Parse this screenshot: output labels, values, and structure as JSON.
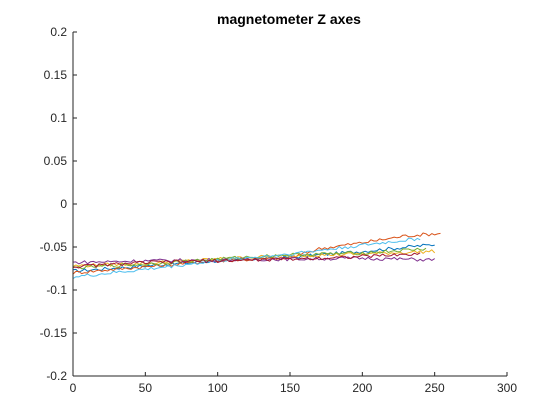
{
  "chart_data": {
    "type": "line",
    "title": "magnetometer Z axes",
    "xlabel": "",
    "ylabel": "",
    "xlim": [
      0,
      300
    ],
    "ylim": [
      -0.2,
      0.2
    ],
    "xticks": [
      0,
      50,
      100,
      150,
      200,
      250,
      300
    ],
    "yticks": [
      -0.2,
      -0.15,
      -0.1,
      -0.05,
      0,
      0.05,
      0.1,
      0.15,
      0.2
    ],
    "xtick_labels": [
      "0",
      "50",
      "100",
      "150",
      "200",
      "250",
      "300"
    ],
    "ytick_labels": [
      "-0.2",
      "-0.15",
      "-0.1",
      "-0.05",
      "0",
      "0.05",
      "0.1",
      "0.15",
      "0.2"
    ],
    "grid": false,
    "legend": "none",
    "series": [
      {
        "color": "#0072BD",
        "x": [
          0,
          50,
          100,
          150,
          200,
          250
        ],
        "y": [
          -0.078,
          -0.072,
          -0.066,
          -0.062,
          -0.055,
          -0.047
        ]
      },
      {
        "color": "#D95319",
        "x": [
          0,
          50,
          100,
          150,
          170,
          200,
          230,
          255
        ],
        "y": [
          -0.08,
          -0.073,
          -0.066,
          -0.063,
          -0.052,
          -0.045,
          -0.037,
          -0.034
        ]
      },
      {
        "color": "#EDB120",
        "x": [
          0,
          50,
          100,
          150,
          200,
          250
        ],
        "y": [
          -0.072,
          -0.069,
          -0.064,
          -0.06,
          -0.058,
          -0.055
        ]
      },
      {
        "color": "#7E2F8E",
        "x": [
          0,
          50,
          100,
          150,
          200,
          250
        ],
        "y": [
          -0.068,
          -0.066,
          -0.065,
          -0.064,
          -0.063,
          -0.065
        ]
      },
      {
        "color": "#77AC30",
        "x": [
          0,
          50,
          100,
          150,
          200,
          245
        ],
        "y": [
          -0.074,
          -0.07,
          -0.064,
          -0.059,
          -0.057,
          -0.052
        ]
      },
      {
        "color": "#4DBEEE",
        "x": [
          0,
          50,
          100,
          150,
          200,
          240
        ],
        "y": [
          -0.085,
          -0.076,
          -0.066,
          -0.058,
          -0.048,
          -0.04
        ]
      },
      {
        "color": "#A2142F",
        "x": [
          0,
          50,
          100,
          150,
          200,
          240
        ],
        "y": [
          -0.073,
          -0.068,
          -0.066,
          -0.064,
          -0.061,
          -0.058
        ]
      }
    ]
  }
}
